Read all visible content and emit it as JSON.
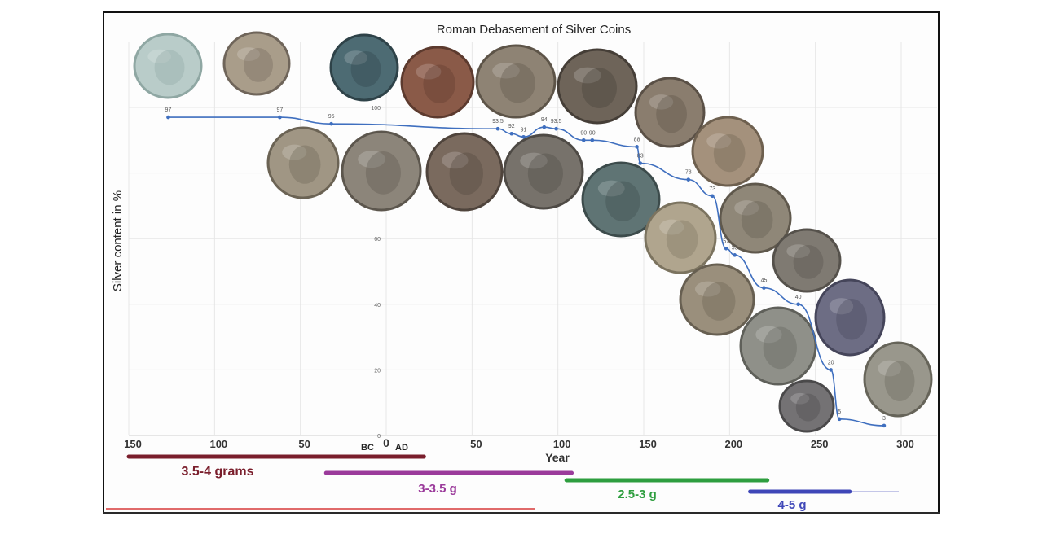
{
  "chart_data": {
    "type": "line",
    "title": "Roman Debasement of Silver Coins",
    "ylabel": "Silver content in %",
    "xlabel": "Year",
    "era_labels": {
      "bc": "BC",
      "ad": "AD"
    },
    "xlim": [
      -150,
      300
    ],
    "ylim": [
      0,
      100
    ],
    "x_ticks": [
      {
        "value": -150,
        "label": "150"
      },
      {
        "value": -100,
        "label": "100"
      },
      {
        "value": -50,
        "label": "50"
      },
      {
        "value": 0,
        "label": "0"
      },
      {
        "value": 50,
        "label": "50"
      },
      {
        "value": 100,
        "label": "100"
      },
      {
        "value": 150,
        "label": "150"
      },
      {
        "value": 200,
        "label": "200"
      },
      {
        "value": 250,
        "label": "250"
      },
      {
        "value": 300,
        "label": "300"
      }
    ],
    "y_ticks": [
      {
        "value": 0,
        "label": "0"
      },
      {
        "value": 20,
        "label": "20"
      },
      {
        "value": 40,
        "label": "40"
      },
      {
        "value": 60,
        "label": "60"
      },
      {
        "value": 100,
        "label": "100"
      }
    ],
    "grid": true,
    "points": [
      {
        "x": -127,
        "y": 97,
        "label": "97"
      },
      {
        "x": -62,
        "y": 97,
        "label": "97"
      },
      {
        "x": -32,
        "y": 95,
        "label": "95"
      },
      {
        "x": 65,
        "y": 93.5,
        "label": "93.5"
      },
      {
        "x": 73,
        "y": 92,
        "label": "92"
      },
      {
        "x": 80,
        "y": 91,
        "label": "91"
      },
      {
        "x": 92,
        "y": 94,
        "label": "94"
      },
      {
        "x": 99,
        "y": 93.5,
        "label": "93.5"
      },
      {
        "x": 115,
        "y": 90,
        "label": "90"
      },
      {
        "x": 120,
        "y": 90,
        "label": "90"
      },
      {
        "x": 146,
        "y": 88,
        "label": "88"
      },
      {
        "x": 148,
        "y": 83,
        "label": "83"
      },
      {
        "x": 176,
        "y": 78,
        "label": "78"
      },
      {
        "x": 190,
        "y": 73,
        "label": "73"
      },
      {
        "x": 198,
        "y": 57,
        "label": "57"
      },
      {
        "x": 203,
        "y": 55,
        "label": "55"
      },
      {
        "x": 220,
        "y": 45,
        "label": "45"
      },
      {
        "x": 240,
        "y": 40,
        "label": "40"
      },
      {
        "x": 259,
        "y": 20,
        "label": "20"
      },
      {
        "x": 264,
        "y": 5,
        "label": "5"
      },
      {
        "x": 290,
        "y": 3,
        "label": "3"
      }
    ],
    "series_color": "#3f6fbf",
    "weight_bands": [
      {
        "label": "3.5-4 grams",
        "start": -150,
        "end": 22,
        "color": "#7a1e2c"
      },
      {
        "label": "3-3.5 g",
        "start": -35,
        "end": 108,
        "color": "#9b3b9b"
      },
      {
        "label": "2.5-3 g",
        "start": 105,
        "end": 222,
        "color": "#2e9e3f"
      },
      {
        "label": "4-5 g",
        "start": 212,
        "end": 270,
        "color": "#3f47b8"
      }
    ]
  },
  "coin_icons": [
    {
      "name": "coin-1-icon",
      "fill": "#b9ccc9",
      "rim": "#8fa7a3"
    },
    {
      "name": "coin-2-icon",
      "fill": "#a99d8a",
      "rim": "#6f655a"
    },
    {
      "name": "coin-3-icon",
      "fill": "#4d6b73",
      "rim": "#2e4248"
    },
    {
      "name": "coin-4-icon",
      "fill": "#8a5a48",
      "rim": "#5c3a2e"
    },
    {
      "name": "coin-5-icon",
      "fill": "#8e8374",
      "rim": "#5d5448"
    },
    {
      "name": "coin-6-icon",
      "fill": "#6e6459",
      "rim": "#453e37"
    },
    {
      "name": "coin-7-icon",
      "fill": "#8a7d6e",
      "rim": "#5a5046"
    },
    {
      "name": "coin-8-icon",
      "fill": "#a4917c",
      "rim": "#6e604f"
    },
    {
      "name": "coin-9-icon",
      "fill": "#8f8778",
      "rim": "#5f584c"
    },
    {
      "name": "coin-10-icon",
      "fill": "#7f7a72",
      "rim": "#55514b"
    },
    {
      "name": "coin-11-icon",
      "fill": "#6d6d84",
      "rim": "#45455a"
    },
    {
      "name": "coin-12-icon",
      "fill": "#99978c",
      "rim": "#666459"
    },
    {
      "name": "coin-13-icon",
      "fill": "#a09684",
      "rim": "#6b6354"
    },
    {
      "name": "coin-14-icon",
      "fill": "#8c857a",
      "rim": "#5c564d"
    },
    {
      "name": "coin-15-icon",
      "fill": "#7a6a5e",
      "rim": "#4f443c"
    },
    {
      "name": "coin-16-icon",
      "fill": "#77726b",
      "rim": "#4e4a45"
    },
    {
      "name": "coin-17-icon",
      "fill": "#5f7474",
      "rim": "#3c4b4b"
    },
    {
      "name": "coin-18-icon",
      "fill": "#b0a58e",
      "rim": "#7b735f"
    },
    {
      "name": "coin-19-icon",
      "fill": "#9a8f7c",
      "rim": "#675f51"
    },
    {
      "name": "coin-20-icon",
      "fill": "#8f9089",
      "rim": "#5f605a"
    },
    {
      "name": "coin-21-icon",
      "fill": "#747274",
      "rim": "#4a494a"
    },
    {
      "name": "coin-22-icon",
      "fill": "#8b8a55",
      "rim": "#5c5b34"
    }
  ]
}
